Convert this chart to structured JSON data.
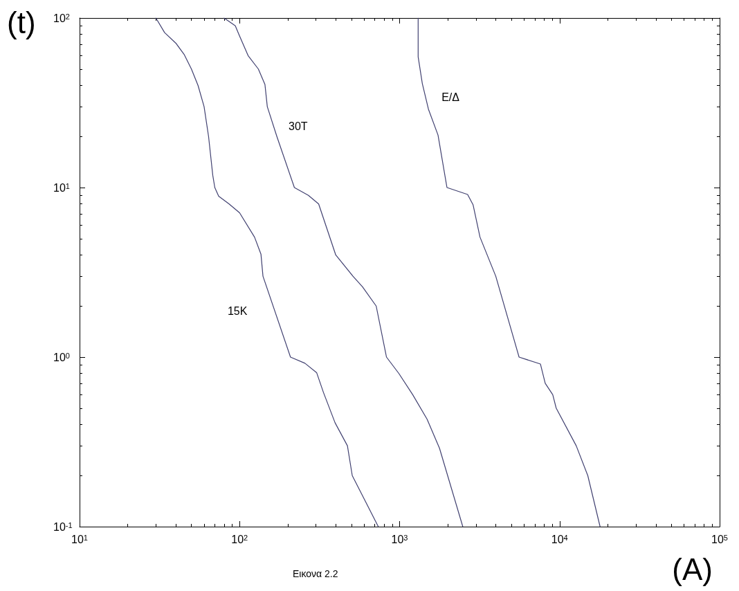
{
  "chart_data": {
    "type": "line",
    "xlabel": "(A)",
    "ylabel": "(t)",
    "log": "xy",
    "grid": false,
    "legend": false,
    "marker": "none",
    "line_style": "solid",
    "xlim": [
      10,
      100000
    ],
    "ylim": [
      0.1,
      100
    ],
    "xticks": [
      {
        "value": 10,
        "label": "10$^{1}$"
      },
      {
        "value": 100,
        "label": "10$^{2}$"
      },
      {
        "value": 1000,
        "label": "10$^{3}$"
      },
      {
        "value": 10000,
        "label": "10$^{4}$"
      },
      {
        "value": 100000,
        "label": "10$^{5}$"
      }
    ],
    "yticks": [
      {
        "value": 0.1,
        "label": "10$^{-1}$"
      },
      {
        "value": 1,
        "label": "10$^{0}$"
      },
      {
        "value": 10,
        "label": "10$^{1}$"
      },
      {
        "value": 100,
        "label": "10$^{2}$"
      }
    ],
    "series": [
      {
        "name": "15K",
        "color": "#404070",
        "x": [
          30,
          34,
          40,
          45,
          50,
          55,
          60,
          64,
          68,
          70,
          74,
          86,
          100,
          124,
          136,
          140,
          208,
          256,
          303,
          334,
          395,
          472,
          506,
          736
        ],
        "values": [
          100,
          82,
          71,
          61,
          50,
          40,
          30,
          20,
          11.8,
          10,
          8.9,
          8,
          7.1,
          5.1,
          4.05,
          3,
          1,
          0.92,
          0.81,
          0.62,
          0.41,
          0.3,
          0.2,
          0.1
        ]
      },
      {
        "name": "30T",
        "color": "#404070",
        "x": [
          80,
          94,
          99,
          113,
          131,
          144,
          149,
          171,
          220,
          269,
          312,
          399,
          511,
          586,
          714,
          828,
          990,
          1208,
          1485,
          1776,
          2483
        ],
        "values": [
          100,
          90,
          80,
          60,
          50,
          40.6,
          30,
          20,
          10,
          9,
          8,
          4,
          3,
          2.6,
          2,
          1,
          0.8,
          0.6,
          0.43,
          0.29,
          0.1
        ]
      },
      {
        "name": "E/Δ",
        "color": "#404070",
        "x": [
          1306,
          1306,
          1387,
          1514,
          1738,
          1977,
          2660,
          2880,
          3180,
          3990,
          5580,
          7590,
          8130,
          9060,
          9520,
          12700,
          15000,
          17900
        ],
        "values": [
          100,
          59,
          41,
          29,
          20.4,
          10,
          9.1,
          7.9,
          5.1,
          3,
          1,
          0.91,
          0.7,
          0.6,
          0.5,
          0.3,
          0.2,
          0.1
        ]
      }
    ],
    "annotations": [
      "Εικονα 2.2"
    ]
  }
}
